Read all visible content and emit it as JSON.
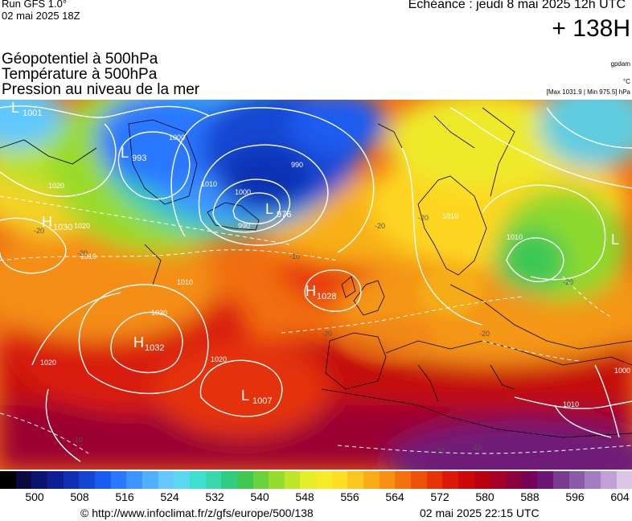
{
  "header": {
    "run_title": "Run GFS 1.0°",
    "run_date": "02 mai 2025 18Z",
    "echeance": "Echéance : jeudi 8 mai 2025 12h UTC",
    "offset": "+ 138H"
  },
  "layers": {
    "geopotential": "Géopotentiel à 500hPa",
    "temperature": "Température à 500hPa",
    "pressure": "Pression au niveau de la mer"
  },
  "units": {
    "gpdam": "gpdam",
    "celsius": "°C",
    "pressure_range": "[Max 1031.9 | Min 975.5] hPa"
  },
  "pressure_centers": [
    {
      "letter": "L",
      "value": "1001"
    },
    {
      "letter": "L",
      "value": "993"
    },
    {
      "letter": "L",
      "value": "976"
    },
    {
      "letter": "H",
      "value": "1030"
    },
    {
      "letter": "H",
      "value": "1028"
    },
    {
      "letter": "H",
      "value": "1032"
    },
    {
      "letter": "L",
      "value": "1007"
    },
    {
      "letter": "L",
      "value": ""
    }
  ],
  "isobar_labels": [
    "1000",
    "1010",
    "1000",
    "990",
    "990",
    "1020",
    "1020",
    "1030",
    "1020",
    "1020",
    "1010",
    "1010",
    "1010",
    "1010",
    "1000",
    "1010"
  ],
  "temperature_labels": [
    "-20",
    "-20",
    "-20",
    "-20",
    "-20",
    "-20",
    "-20",
    "-10",
    "-10",
    "-10",
    "-10"
  ],
  "colorbar": {
    "ticks": [
      "500",
      "508",
      "516",
      "524",
      "532",
      "540",
      "548",
      "556",
      "564",
      "572",
      "580",
      "588",
      "596",
      "604"
    ],
    "colors": [
      "#000000",
      "#0a0a40",
      "#0b1470",
      "#0d1e96",
      "#1030b4",
      "#1446d2",
      "#1a5cf0",
      "#2a78ff",
      "#3c94ff",
      "#50b0ff",
      "#64c8ff",
      "#5ad8f0",
      "#40e0d0",
      "#38d8a8",
      "#30cc80",
      "#40c850",
      "#6ad23a",
      "#96dc2c",
      "#c0e628",
      "#e6ee2a",
      "#f6ec28",
      "#fede26",
      "#fec620",
      "#fcac18",
      "#f89012",
      "#f4720e",
      "#ee5208",
      "#e63408",
      "#dc1808",
      "#cc0808",
      "#b80010",
      "#a4002a",
      "#8c0040",
      "#760058",
      "#6c1474",
      "#7a3a90",
      "#8c5aaa",
      "#a47cc0",
      "#c0a0d6",
      "#dcc6e8"
    ]
  },
  "footer": {
    "url": "© http://www.infoclimat.fr/z/gfs/europe/500/138",
    "timestamp": "02 mai 2025 22:15 UTC"
  }
}
